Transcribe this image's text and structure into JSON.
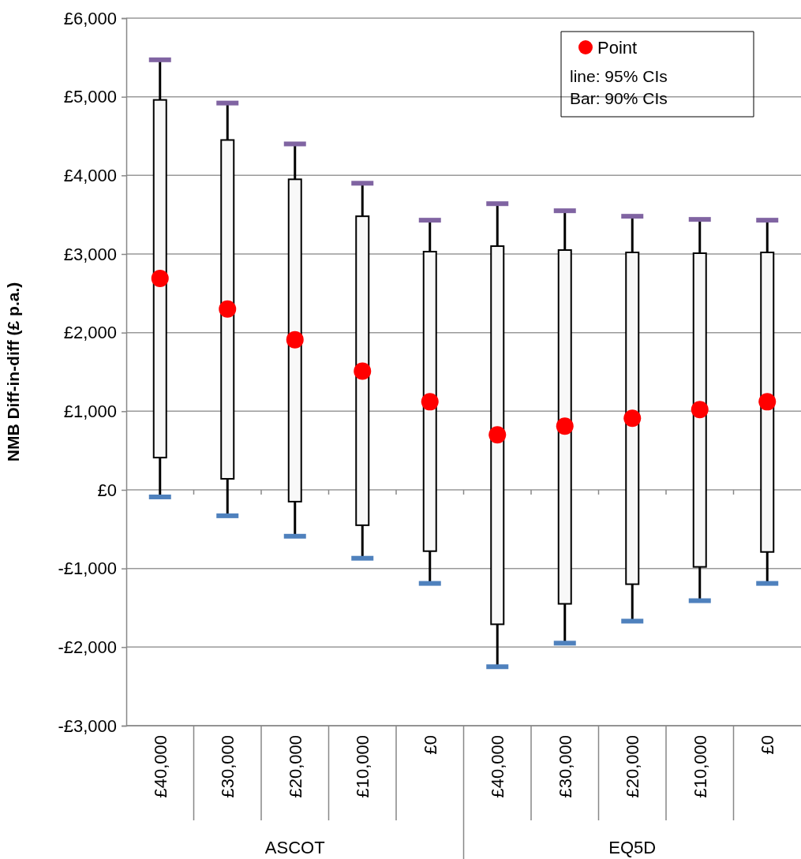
{
  "chart_data": {
    "type": "box",
    "ylabel": "NMB Diff-in-diff (£ p.a.)",
    "categories": [
      "£40,000",
      "£30,000",
      "£20,000",
      "£10,000",
      "£0",
      "£40,000",
      "£30,000",
      "£20,000",
      "£10,000",
      "£0"
    ],
    "series": [
      {
        "color": "#f8f8f8",
        "boxes": [
          {
            "low": -90,
            "q1": 410,
            "q3": 4960,
            "high": 5470
          },
          {
            "low": -330,
            "q1": 140,
            "q3": 4450,
            "high": 4920
          },
          {
            "low": -590,
            "q1": -150,
            "q3": 3950,
            "high": 4400
          },
          {
            "low": -870,
            "q1": -450,
            "q3": 3480,
            "high": 3900
          },
          {
            "low": -1190,
            "q1": -780,
            "q3": 3030,
            "high": 3430
          },
          {
            "low": -2250,
            "q1": -1710,
            "q3": 3100,
            "high": 3640
          },
          {
            "low": -1950,
            "q1": -1450,
            "q3": 3050,
            "high": 3550
          },
          {
            "low": -1670,
            "q1": -1200,
            "q3": 3020,
            "high": 3480
          },
          {
            "low": -1410,
            "q1": -980,
            "q3": 3010,
            "high": 3440
          },
          {
            "low": -1190,
            "q1": -790,
            "q3": 3020,
            "high": 3430
          }
        ]
      },
      {
        "type": "scatter",
        "name": "Point",
        "color": "#ff0000",
        "values": [
          2690,
          2300,
          1910,
          1510,
          1120,
          700,
          810,
          910,
          1020,
          1120
        ]
      }
    ],
    "ylim": [
      -3000,
      6000
    ],
    "yticks": [
      {
        "value": -3000,
        "label": "-£3,000"
      },
      {
        "value": -2000,
        "label": "-£2,000"
      },
      {
        "value": -1000,
        "label": "-£1,000"
      },
      {
        "value": 0,
        "label": "£0"
      },
      {
        "value": 1000,
        "label": "£1,000"
      },
      {
        "value": 2000,
        "label": "£2,000"
      },
      {
        "value": 3000,
        "label": "£3,000"
      },
      {
        "value": 4000,
        "label": "£4,000"
      },
      {
        "value": 5000,
        "label": "£5,000"
      },
      {
        "value": 6000,
        "label": "£6,000"
      }
    ],
    "grid": "y",
    "legend": "top right",
    "marker": "circle",
    "annotations": [
      "line: 95% CIs",
      "Bar: 90% CIs",
      "ASCOT",
      "EQ5D"
    ]
  }
}
